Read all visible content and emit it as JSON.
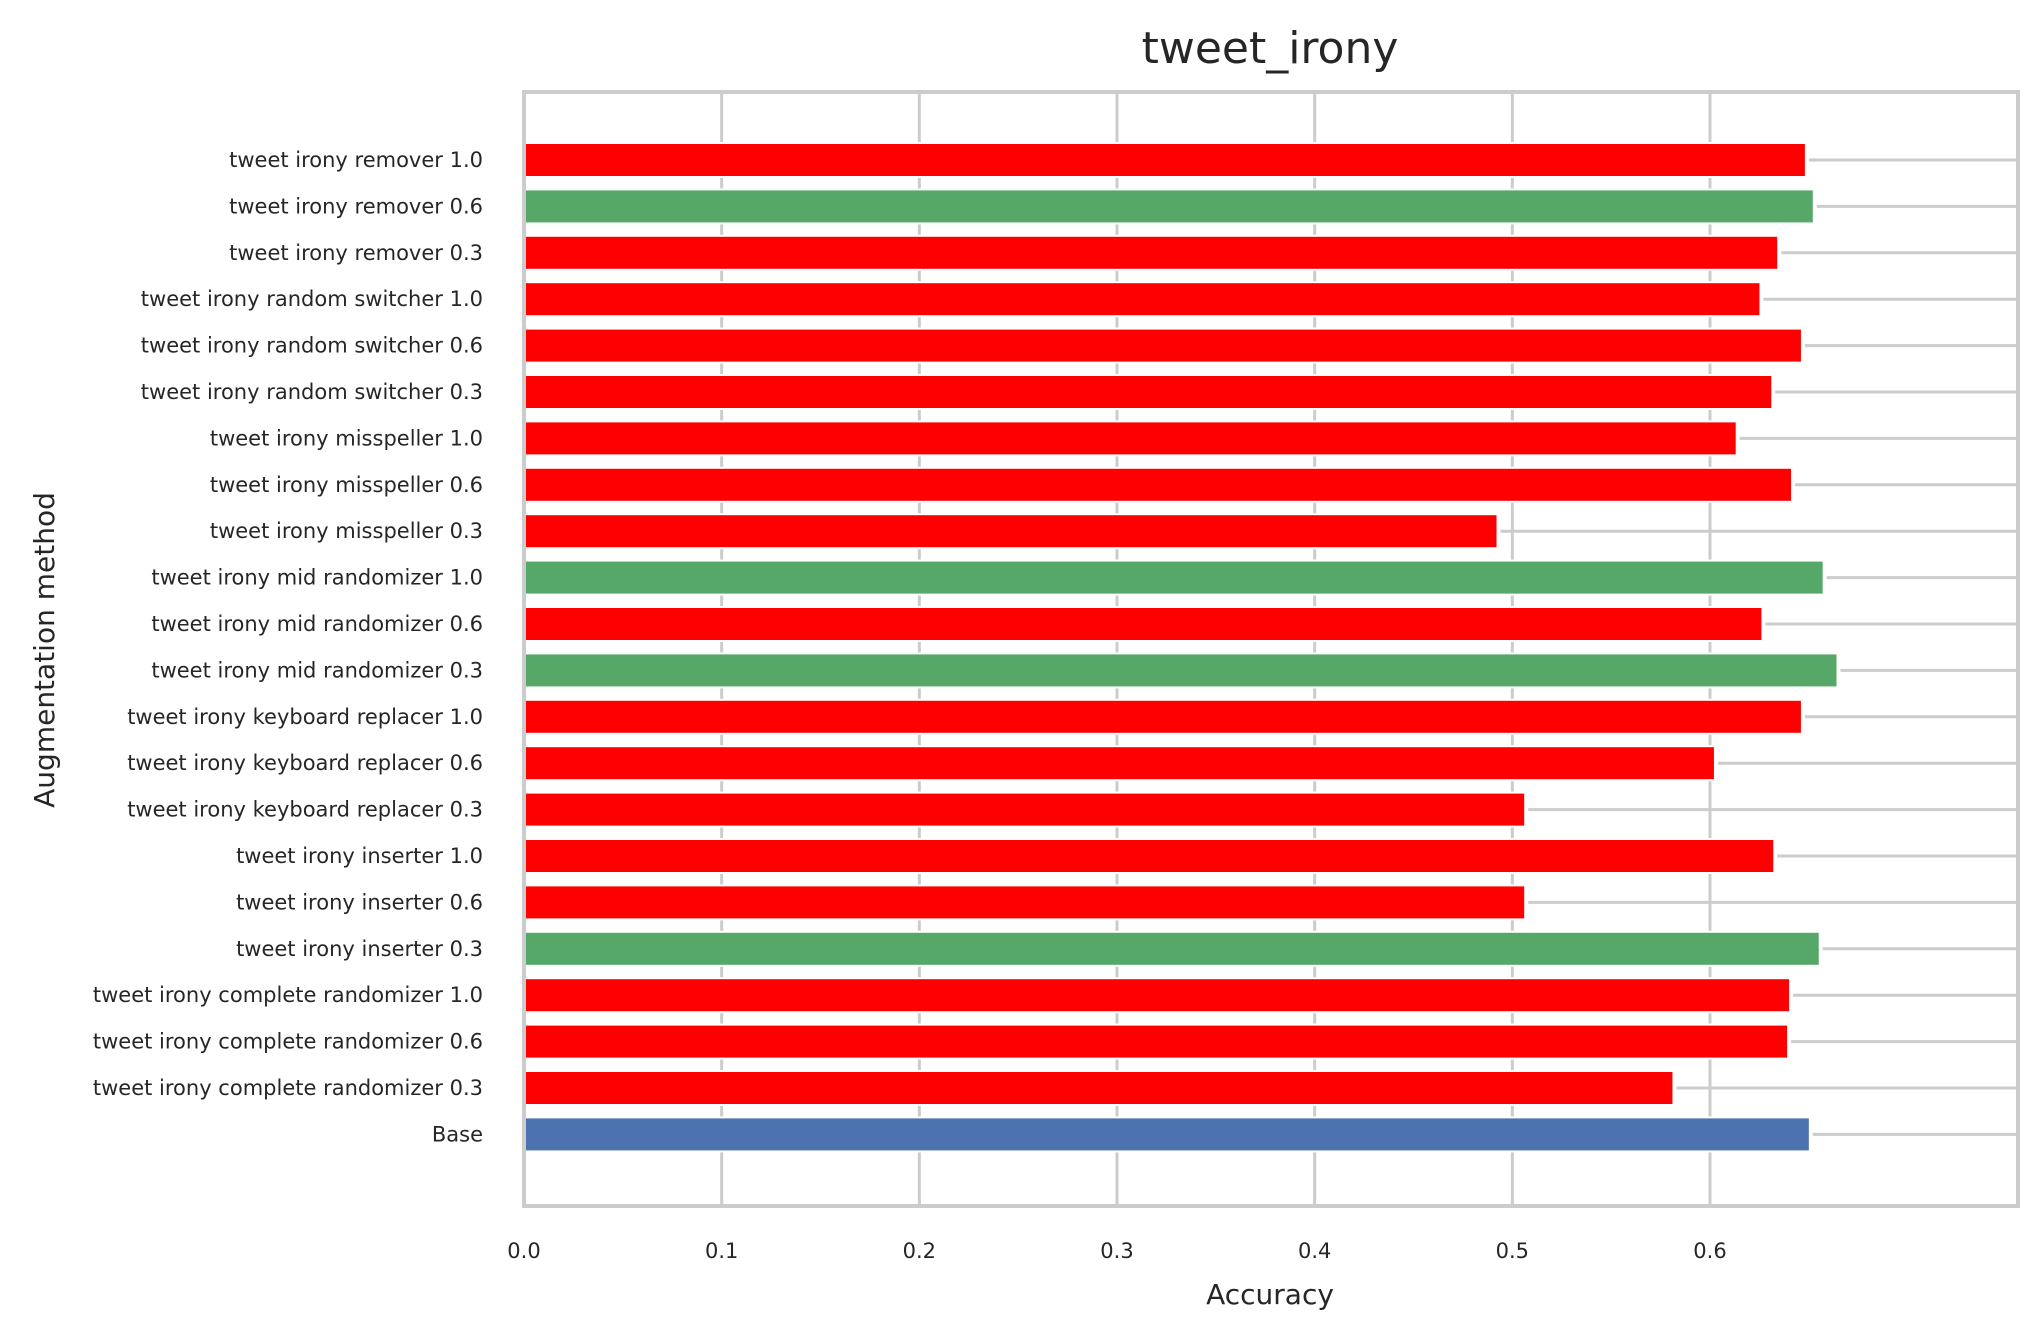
{
  "chart_data": {
    "type": "bar",
    "orientation": "horizontal",
    "title": "tweet_irony",
    "xlabel": "Accuracy",
    "ylabel": "Augmentation method",
    "xlim": [
      0,
      0.7
    ],
    "xticks": [
      0.0,
      0.1,
      0.2,
      0.3,
      0.4,
      0.5,
      0.6
    ],
    "xtick_labels": [
      "0.0",
      "0.1",
      "0.2",
      "0.3",
      "0.4",
      "0.5",
      "0.6"
    ],
    "grid": true,
    "colors": {
      "base": "#4c72b0",
      "better": "#55a868",
      "worse": "#ff0000",
      "grid": "#cccccc",
      "frame": "#cccccc",
      "text": "#262626"
    },
    "categories": [
      "tweet irony remover 1.0",
      "tweet irony remover 0.6",
      "tweet irony remover 0.3",
      "tweet irony random switcher 1.0",
      "tweet irony random switcher 0.6",
      "tweet irony random switcher 0.3",
      "tweet irony misspeller 1.0",
      "tweet irony misspeller 0.6",
      "tweet irony misspeller 0.3",
      "tweet irony mid randomizer 1.0",
      "tweet irony mid randomizer 0.6",
      "tweet irony mid randomizer 0.3",
      "tweet irony keyboard replacer 1.0",
      "tweet irony keyboard replacer 0.6",
      "tweet irony keyboard replacer 0.3",
      "tweet irony inserter 1.0",
      "tweet irony inserter 0.6",
      "tweet irony inserter 0.3",
      "tweet irony complete randomizer 1.0",
      "tweet irony complete randomizer 0.6",
      "tweet irony complete randomizer 0.3",
      "Base"
    ],
    "values": [
      0.648,
      0.652,
      0.634,
      0.625,
      0.646,
      0.631,
      0.613,
      0.641,
      0.492,
      0.657,
      0.626,
      0.664,
      0.646,
      0.602,
      0.506,
      0.632,
      0.506,
      0.655,
      0.64,
      0.639,
      0.581,
      0.65
    ],
    "bar_colors": [
      "worse",
      "better",
      "worse",
      "worse",
      "worse",
      "worse",
      "worse",
      "worse",
      "worse",
      "better",
      "worse",
      "better",
      "worse",
      "worse",
      "worse",
      "worse",
      "worse",
      "better",
      "worse",
      "worse",
      "worse",
      "base"
    ]
  }
}
